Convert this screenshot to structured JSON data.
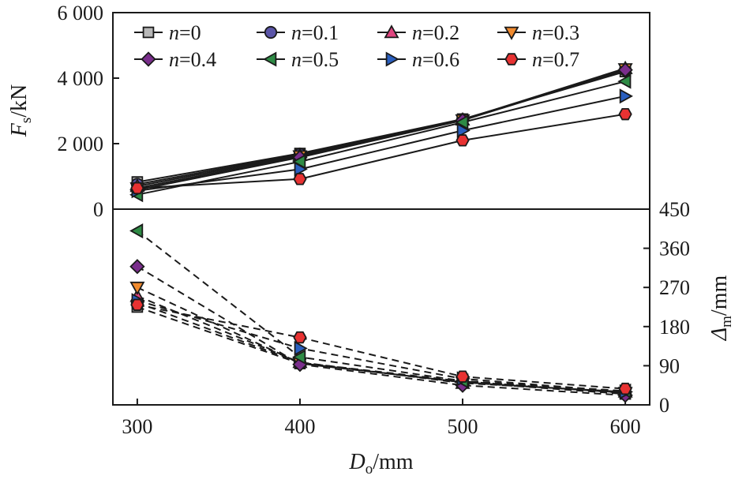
{
  "chart_data": [
    {
      "type": "line",
      "panel": "top",
      "ylabel_main": "F",
      "ylabel_sub": "s",
      "ylabel_unit": "/kN",
      "ylim": [
        0,
        6000
      ],
      "yticks": [
        0,
        2000,
        4000,
        6000
      ],
      "ytick_labels": [
        "0",
        "2 000",
        "4 000",
        "6 000"
      ],
      "line_style": "solid",
      "grid": false,
      "legend_placement": "top-left",
      "x": [
        300,
        400,
        500,
        600
      ],
      "series": [
        {
          "name": "n=0",
          "values": [
            830,
            1700,
            2750,
            4200
          ]
        },
        {
          "name": "n=0.1",
          "values": [
            760,
            1680,
            2740,
            4250
          ]
        },
        {
          "name": "n=0.2",
          "values": [
            700,
            1650,
            2730,
            4300
          ]
        },
        {
          "name": "n=0.3",
          "values": [
            640,
            1620,
            2720,
            4280
          ]
        },
        {
          "name": "n=0.4",
          "values": [
            590,
            1580,
            2710,
            4250
          ]
        },
        {
          "name": "n=0.5",
          "values": [
            440,
            1450,
            2650,
            3900
          ]
        },
        {
          "name": "n=0.6",
          "values": [
            560,
            1220,
            2400,
            3450
          ]
        },
        {
          "name": "n=0.7",
          "values": [
            640,
            920,
            2100,
            2900
          ]
        }
      ]
    },
    {
      "type": "line",
      "panel": "bottom",
      "ylabel_main": "Δ",
      "ylabel_sub": "m",
      "ylabel_unit": "/mm",
      "ylim": [
        0,
        450
      ],
      "yticks": [
        0,
        90,
        180,
        270,
        360,
        450
      ],
      "ytick_labels": [
        "0",
        "90",
        "180",
        "270",
        "360",
        "450"
      ],
      "line_style": "dashed",
      "grid": false,
      "x": [
        300,
        400,
        500,
        600
      ],
      "series": [
        {
          "name": "n=0",
          "values": [
            225,
            95,
            52,
            25
          ]
        },
        {
          "name": "n=0.1",
          "values": [
            235,
            97,
            54,
            27
          ]
        },
        {
          "name": "n=0.2",
          "values": [
            250,
            98,
            50,
            30
          ]
        },
        {
          "name": "n=0.3",
          "values": [
            270,
            96,
            52,
            28
          ]
        },
        {
          "name": "n=0.4",
          "values": [
            318,
            93,
            45,
            22
          ]
        },
        {
          "name": "n=0.5",
          "values": [
            400,
            110,
            55,
            32
          ]
        },
        {
          "name": "n=0.6",
          "values": [
            240,
            130,
            60,
            30
          ]
        },
        {
          "name": "n=0.7",
          "values": [
            230,
            155,
            65,
            37
          ]
        }
      ]
    }
  ],
  "shared_x": {
    "xlabel_main": "D",
    "xlabel_sub": "o",
    "xlabel_unit": "/mm",
    "xlim": [
      285,
      615
    ],
    "xticks": [
      300,
      400,
      500,
      600
    ],
    "xtick_labels": [
      "300",
      "400",
      "500",
      "600"
    ]
  },
  "legend": {
    "italic_part": "n",
    "items": [
      {
        "series": "n=0",
        "value_text": "=0",
        "marker": "square",
        "color": "#b8b8b8"
      },
      {
        "series": "n=0.1",
        "value_text": "=0.1",
        "marker": "circle",
        "color": "#5b55a8"
      },
      {
        "series": "n=0.2",
        "value_text": "=0.2",
        "marker": "triangle-up",
        "color": "#e0457f"
      },
      {
        "series": "n=0.3",
        "value_text": "=0.3",
        "marker": "triangle-down",
        "color": "#f08a2e"
      },
      {
        "series": "n=0.4",
        "value_text": "=0.4",
        "marker": "diamond",
        "color": "#7a2e8c"
      },
      {
        "series": "n=0.5",
        "value_text": "=0.5",
        "marker": "triangle-left",
        "color": "#2e8b45"
      },
      {
        "series": "n=0.6",
        "value_text": "=0.6",
        "marker": "triangle-right",
        "color": "#2a5fbf"
      },
      {
        "series": "n=0.7",
        "value_text": "=0.7",
        "marker": "hexagon",
        "color": "#e83232"
      }
    ]
  }
}
